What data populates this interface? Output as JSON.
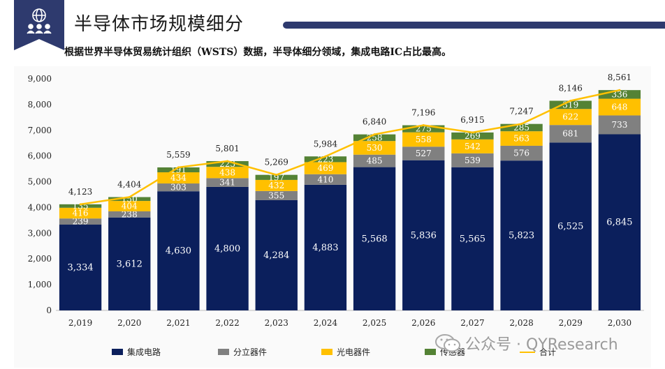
{
  "header": {
    "title": "半导体市场规模细分",
    "subtitle": "根据世界半导体贸易统计组织（WSTS）数据，半导体细分领域，集成电路IC占比最高。",
    "accent_color": "#2e3a6e"
  },
  "watermark": {
    "text": "公众号 · QYResearch"
  },
  "chart_data": {
    "type": "bar",
    "stacked": true,
    "categories": [
      "2,019",
      "2,020",
      "2,021",
      "2,022",
      "2,023",
      "2,024",
      "2,025",
      "2,026",
      "2,027",
      "2,028",
      "2,029",
      "2,030"
    ],
    "series": [
      {
        "name": "集成电路",
        "color": "#0b1f5c",
        "values": [
          3334,
          3612,
          4630,
          4800,
          4284,
          4883,
          5568,
          5836,
          5565,
          5823,
          6525,
          6845
        ],
        "labels": [
          "3,334",
          "3,612",
          "4,630",
          "4,800",
          "4,284",
          "4,883",
          "5,568",
          "5,836",
          "5,565",
          "5,823",
          "6,525",
          "6,845"
        ]
      },
      {
        "name": "分立器件",
        "color": "#808080",
        "values": [
          239,
          238,
          303,
          341,
          355,
          410,
          485,
          527,
          539,
          576,
          681,
          733
        ],
        "labels": [
          "239",
          "238",
          "303",
          "341",
          "355",
          "410",
          "485",
          "527",
          "539",
          "576",
          "681",
          "733"
        ]
      },
      {
        "name": "光电器件",
        "color": "#ffc000",
        "values": [
          416,
          404,
          434,
          438,
          432,
          469,
          530,
          558,
          542,
          563,
          622,
          648
        ],
        "labels": [
          "416",
          "404",
          "434",
          "438",
          "432",
          "469",
          "530",
          "558",
          "542",
          "563",
          "622",
          "648"
        ]
      },
      {
        "name": "传感器",
        "color": "#548235",
        "values": [
          135,
          150,
          191,
          223,
          197,
          223,
          258,
          275,
          269,
          285,
          319,
          336
        ],
        "labels": [
          "135",
          "150",
          "191",
          "223",
          "197",
          "223",
          "258",
          "275",
          "269",
          "285",
          "319",
          "336"
        ]
      }
    ],
    "total": {
      "name": "合计",
      "color": "#ffc000",
      "values": [
        4123,
        4404,
        5559,
        5801,
        5269,
        5984,
        6840,
        7196,
        6915,
        7247,
        8146,
        8561
      ],
      "labels": [
        "4,123",
        "4,404",
        "5,559",
        "5,801",
        "5,269",
        "5,984",
        "6,840",
        "7,196",
        "6,915",
        "7,247",
        "8,146",
        "8,561"
      ]
    },
    "ylim": [
      0,
      9000
    ],
    "yticks": [
      "0",
      "1,000",
      "2,000",
      "3,000",
      "4,000",
      "5,000",
      "6,000",
      "7,000",
      "8,000",
      "9,000"
    ],
    "grid": false,
    "legend_position": "bottom"
  }
}
